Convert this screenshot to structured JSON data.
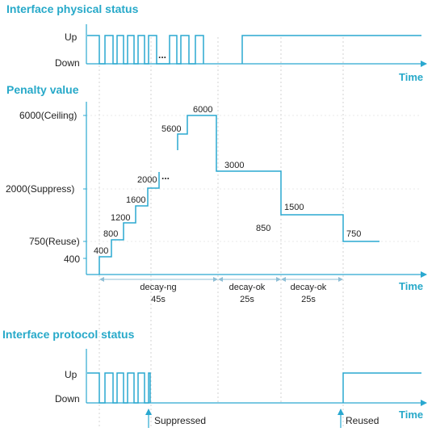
{
  "physical": {
    "title": "Interface physical status",
    "up_label": "Up",
    "down_label": "Down",
    "ellipsis": "...",
    "time_label": "Time"
  },
  "penalty": {
    "title": "Penalty value",
    "ceiling_label": "6000(Ceiling)",
    "suppress_label": "2000(Suppress)",
    "reuse_label": "750(Reuse)",
    "base_label": "400",
    "ellipsis": "...",
    "time_label": "Time",
    "steps": [
      {
        "text": "400"
      },
      {
        "text": "800"
      },
      {
        "text": "1200"
      },
      {
        "text": "1600"
      },
      {
        "text": "2000"
      },
      {
        "text": "5600"
      },
      {
        "text": "6000"
      },
      {
        "text": "3000"
      },
      {
        "text": "1500"
      },
      {
        "text": "850"
      },
      {
        "text": "750"
      }
    ],
    "phases": [
      {
        "name": "decay-ng",
        "duration": "45s"
      },
      {
        "name": "decay-ok",
        "duration": "25s"
      },
      {
        "name": "decay-ok",
        "duration": "25s"
      }
    ]
  },
  "protocol": {
    "title": "Interface protocol status",
    "up_label": "Up",
    "down_label": "Down",
    "time_label": "Time",
    "suppressed_label": "Suppressed",
    "reused_label": "Reused"
  },
  "colors": {
    "accent": "#27a9c9",
    "signal": "#2aa8d0"
  }
}
